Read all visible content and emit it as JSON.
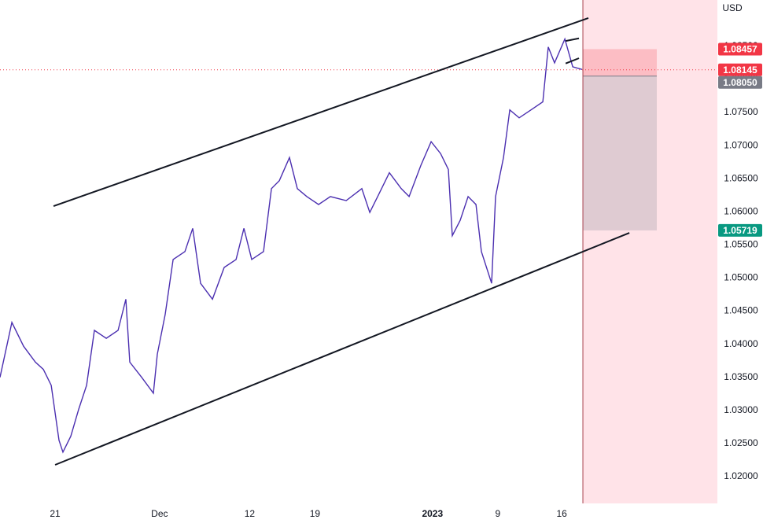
{
  "chart_data": {
    "type": "line",
    "currency": "USD",
    "series": [
      {
        "color": "#4b2fb0",
        "x": [
          -4.22,
          -3.31,
          -2.41,
          -1.51,
          -0.9,
          -0.3,
          0.3,
          0.6,
          1.2,
          1.81,
          2.41,
          3.01,
          3.92,
          4.82,
          5.42,
          5.72,
          6.63,
          7.53,
          7.83,
          8.43,
          9.04,
          9.94,
          10.54,
          11.14,
          12.05,
          12.95,
          13.86,
          14.46,
          15.06,
          15.96,
          16.57,
          17.17,
          17.95,
          18.55,
          19.28,
          20.18,
          21.08,
          22.29,
          23.49,
          24.1,
          24.7,
          25.6,
          26.51,
          27.11,
          28.01,
          28.8,
          29.52,
          30.12,
          30.42,
          31.02,
          31.63,
          32.23,
          32.65,
          33.43,
          33.73,
          34.34,
          34.82,
          35.54,
          36.45,
          37.35,
          37.77,
          38.25,
          39.04,
          39.64,
          40.36
        ],
        "values": [
          1.035,
          1.0433,
          1.0397,
          1.0373,
          1.0362,
          1.0338,
          1.0255,
          1.0237,
          1.0261,
          1.0302,
          1.0338,
          1.0421,
          1.0409,
          1.0421,
          1.0468,
          1.0373,
          1.035,
          1.0326,
          1.0385,
          1.0445,
          1.0528,
          1.054,
          1.0575,
          1.0492,
          1.0468,
          1.0516,
          1.0528,
          1.0575,
          1.0528,
          1.054,
          1.0635,
          1.0647,
          1.0682,
          1.0635,
          1.0623,
          1.0611,
          1.0623,
          1.0617,
          1.0635,
          1.0599,
          1.0623,
          1.0659,
          1.0635,
          1.0623,
          1.067,
          1.0706,
          1.0688,
          1.0664,
          1.0564,
          1.0587,
          1.0623,
          1.0611,
          1.054,
          1.0492,
          1.0623,
          1.0682,
          1.0754,
          1.0742,
          1.0754,
          1.0766,
          1.0849,
          1.0825,
          1.0861,
          1.0819,
          1.0815
        ]
      }
    ],
    "xlim": [
      -4.22,
      50.72
    ],
    "xticks": [
      {
        "value": 0,
        "label": "21"
      },
      {
        "value": 8,
        "label": "Dec"
      },
      {
        "value": 14.9,
        "label": "12"
      },
      {
        "value": 19.9,
        "label": "19"
      },
      {
        "value": 28.9,
        "label": "2023"
      },
      {
        "value": 33.9,
        "label": "9"
      },
      {
        "value": 38.8,
        "label": "16"
      }
    ],
    "ylim": [
      1.01596,
      1.09199
    ],
    "yticks": [
      {
        "value": 1.02,
        "label": "1.02000"
      },
      {
        "value": 1.025,
        "label": "1.02500"
      },
      {
        "value": 1.03,
        "label": "1.03000"
      },
      {
        "value": 1.035,
        "label": "1.03500"
      },
      {
        "value": 1.04,
        "label": "1.04000"
      },
      {
        "value": 1.045,
        "label": "1.04500"
      },
      {
        "value": 1.05,
        "label": "1.05000"
      },
      {
        "value": 1.055,
        "label": "1.05500"
      },
      {
        "value": 1.06,
        "label": "1.06000"
      },
      {
        "value": 1.065,
        "label": "1.06500"
      },
      {
        "value": 1.07,
        "label": "1.07000"
      },
      {
        "value": 1.075,
        "label": "1.07500"
      },
      {
        "value": 1.08,
        "label": "1.08000"
      },
      {
        "value": 1.085,
        "label": "1.08500"
      }
    ],
    "trendlines": [
      {
        "x": [
          -0.12,
          40.84
        ],
        "y": [
          1.06086,
          1.08926
        ]
      },
      {
        "x": [
          0,
          43.98
        ],
        "y": [
          1.02178,
          1.05682
        ]
      },
      {
        "x": [
          39.1,
          40.12
        ],
        "y": [
          1.0858,
          1.0862
        ]
      },
      {
        "x": [
          39.1,
          40.12
        ],
        "y": [
          1.0824,
          1.0832
        ]
      }
    ],
    "position": {
      "x": [
        40.42,
        46.08
      ],
      "stop": 1.08457,
      "entry": 1.0805,
      "target": 1.05719
    },
    "current_price": 1.08145,
    "price_tags": [
      {
        "value": 1.08457,
        "label": "1.08457",
        "color": "#f23645"
      },
      {
        "value": 1.08145,
        "label": "1.08145",
        "color": "#f23645"
      },
      {
        "value": 1.0805,
        "label": "1.08050",
        "color": "#787b86"
      },
      {
        "value": 1.05719,
        "label": "1.05719",
        "color": "#089981"
      }
    ]
  }
}
